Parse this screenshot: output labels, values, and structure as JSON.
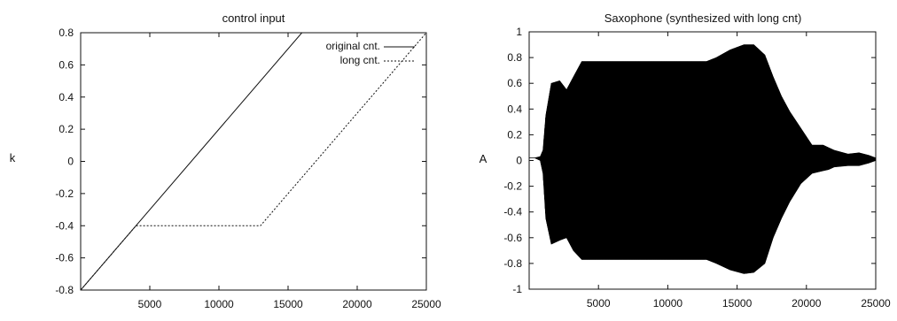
{
  "chart_data": [
    {
      "type": "line",
      "title": "control input",
      "xlabel": "",
      "ylabel": "k",
      "xlim": [
        0,
        25000
      ],
      "ylim": [
        -0.8,
        0.8
      ],
      "xticks": [
        5000,
        10000,
        15000,
        20000,
        25000
      ],
      "yticks": [
        -0.8,
        -0.6,
        -0.4,
        -0.2,
        0,
        0.2,
        0.4,
        0.6,
        0.8
      ],
      "legend_position": "top-right",
      "series": [
        {
          "name": "original cnt.",
          "style": "solid",
          "x": [
            0,
            16000
          ],
          "y": [
            -0.8,
            0.8
          ]
        },
        {
          "name": "long cnt.",
          "style": "dotted",
          "x": [
            0,
            4000,
            13000,
            25000
          ],
          "y": [
            -0.8,
            -0.4,
            -0.4,
            0.8
          ]
        }
      ]
    },
    {
      "type": "area",
      "title": "Saxophone (synthesized with long cnt)",
      "xlabel": "",
      "ylabel": "A",
      "xlim": [
        0,
        25000
      ],
      "ylim": [
        -1,
        1
      ],
      "xticks": [
        5000,
        10000,
        15000,
        20000,
        25000
      ],
      "yticks": [
        -1,
        -0.8,
        -0.6,
        -0.4,
        -0.2,
        0,
        0.2,
        0.4,
        0.6,
        0.8,
        1
      ],
      "envelope": {
        "x": [
          0,
          400,
          800,
          1000,
          1200,
          1600,
          2200,
          2700,
          3200,
          3800,
          5000,
          8000,
          11000,
          12800,
          13500,
          14500,
          15500,
          16200,
          17000,
          17600,
          18200,
          18800,
          19600,
          20400,
          21200,
          21600,
          22000,
          23000,
          23800,
          24500,
          25000
        ],
        "upper": [
          0.02,
          0.02,
          0.03,
          0.08,
          0.35,
          0.6,
          0.62,
          0.55,
          0.65,
          0.77,
          0.77,
          0.77,
          0.77,
          0.77,
          0.8,
          0.86,
          0.9,
          0.9,
          0.82,
          0.65,
          0.5,
          0.38,
          0.25,
          0.12,
          0.12,
          0.1,
          0.08,
          0.05,
          0.06,
          0.04,
          0.02
        ],
        "lower": [
          0.02,
          0.02,
          0.0,
          -0.1,
          -0.45,
          -0.65,
          -0.62,
          -0.6,
          -0.7,
          -0.77,
          -0.77,
          -0.77,
          -0.77,
          -0.77,
          -0.8,
          -0.85,
          -0.88,
          -0.87,
          -0.8,
          -0.6,
          -0.45,
          -0.32,
          -0.18,
          -0.1,
          -0.08,
          -0.07,
          -0.05,
          -0.04,
          -0.04,
          -0.02,
          0.0
        ]
      }
    }
  ]
}
